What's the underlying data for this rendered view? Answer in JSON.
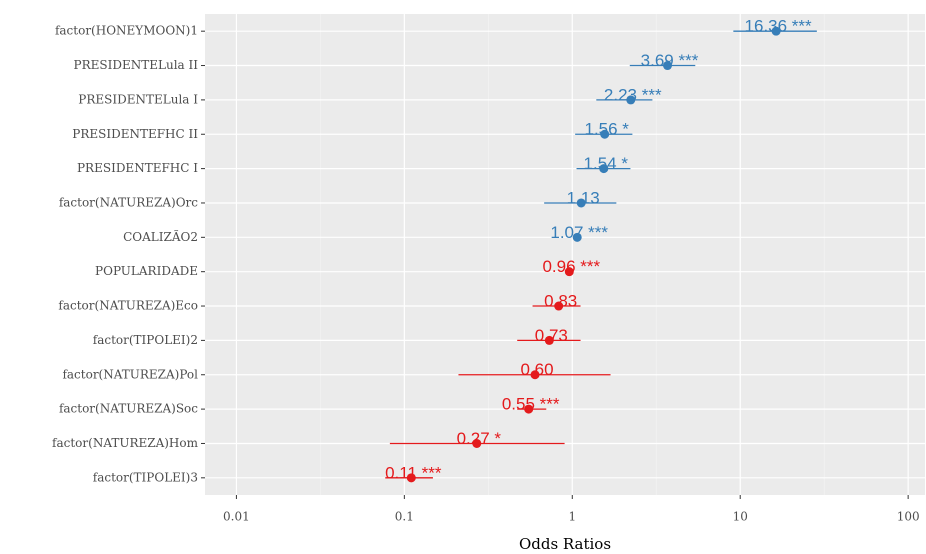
{
  "chart_data": {
    "type": "forest",
    "x_label": "Odds Ratios",
    "log_x": true,
    "grid": true,
    "categories": [
      "factor(HONEYMOON)1",
      "PRESIDENTELula II",
      "PRESIDENTELula I",
      "PRESIDENTEFHC II",
      "PRESIDENTEFHC I",
      "factor(NATUREZA)Orc",
      "COALIZÃO2",
      "POPULARIDADE",
      "factor(NATUREZA)Eco",
      "factor(TIPOLEI)2",
      "factor(NATUREZA)Pol",
      "factor(NATUREZA)Soc",
      "factor(NATUREZA)Hom",
      "factor(TIPOLEI)3"
    ],
    "values": [
      16.36,
      3.69,
      2.23,
      1.56,
      1.54,
      1.13,
      1.07,
      0.96,
      0.83,
      0.73,
      0.6,
      0.55,
      0.27,
      0.11
    ],
    "value_labels": [
      "16.36 ***",
      "3.69 ***",
      "2.23 ***",
      "1.56 *",
      "1.54 *",
      "1.13",
      "1.07 ***",
      "0.96 ***",
      "0.83",
      "0.73",
      "0.60",
      "0.55 ***",
      "0.27 *",
      "0.11 ***"
    ],
    "ci_low": [
      9.1,
      2.2,
      1.39,
      1.04,
      1.06,
      0.68,
      1.03,
      0.93,
      0.58,
      0.47,
      0.21,
      0.47,
      0.082,
      0.077
    ],
    "ci_high": [
      28.6,
      5.4,
      3.0,
      2.28,
      2.22,
      1.83,
      1.11,
      0.99,
      1.12,
      1.12,
      1.69,
      0.7,
      0.9,
      0.148
    ],
    "colors": [
      "#377eb8",
      "#377eb8",
      "#377eb8",
      "#377eb8",
      "#377eb8",
      "#377eb8",
      "#377eb8",
      "#e41a1c",
      "#e41a1c",
      "#e41a1c",
      "#e41a1c",
      "#e41a1c",
      "#e41a1c",
      "#e41a1c"
    ],
    "xlim": [
      0.0065,
      126
    ],
    "xticks": [
      0.01,
      0.1,
      1,
      10,
      100
    ]
  }
}
